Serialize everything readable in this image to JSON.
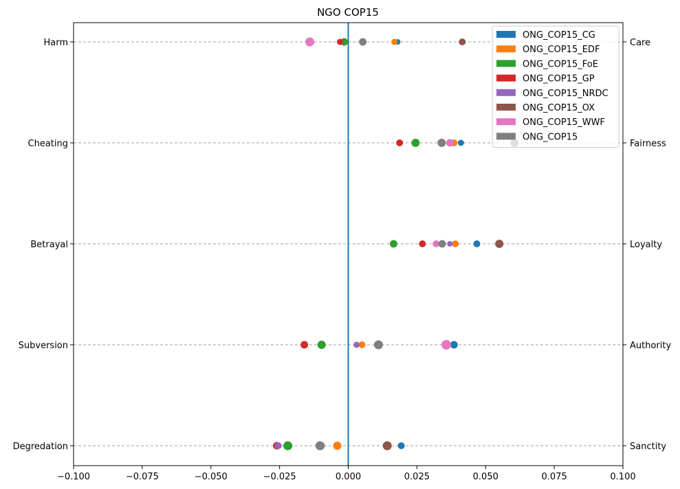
{
  "chart_data": {
    "type": "scatter",
    "title": "NGO COP15",
    "xlabel": "",
    "ylabel": "",
    "xlim": [
      -0.1,
      0.1
    ],
    "xticks": [
      -0.1,
      -0.075,
      -0.05,
      -0.025,
      0.0,
      0.025,
      0.05,
      0.075,
      0.1
    ],
    "xtick_labels": [
      "−0.100",
      "−0.075",
      "−0.050",
      "−0.025",
      "0.000",
      "0.025",
      "0.050",
      "0.075",
      "0.100"
    ],
    "foundations": [
      {
        "left": "Harm",
        "right": "Care"
      },
      {
        "left": "Cheating",
        "right": "Fairness"
      },
      {
        "left": "Betrayal",
        "right": "Loyalty"
      },
      {
        "left": "Subversion",
        "right": "Authority"
      },
      {
        "left": "Degredation",
        "right": "Sanctity"
      }
    ],
    "zero_line_color": "#1f77b4",
    "grid": "horizontal dashed",
    "legend_position": "upper-right",
    "series": [
      {
        "name": "ONG_COP15_CG",
        "color": "#1f77b4",
        "values": [
          0.018,
          0.041,
          0.0468,
          0.0385,
          0.0193
        ],
        "sizes": [
          8,
          9,
          10,
          11,
          10
        ]
      },
      {
        "name": "ONG_COP15_EDF",
        "color": "#ff7f0e",
        "values": [
          0.0168,
          0.0385,
          0.039,
          0.005,
          -0.004
        ],
        "sizes": [
          9,
          10,
          10,
          10,
          12
        ]
      },
      {
        "name": "ONG_COP15_FoE",
        "color": "#2ca02c",
        "values": [
          -0.0015,
          0.0245,
          0.0165,
          -0.0097,
          -0.022
        ],
        "sizes": [
          11,
          12,
          11,
          12,
          13
        ]
      },
      {
        "name": "ONG_COP15_GP",
        "color": "#d62728",
        "values": [
          -0.003,
          0.0187,
          0.027,
          -0.016,
          -0.026
        ],
        "sizes": [
          9,
          10,
          10,
          11,
          11
        ]
      },
      {
        "name": "ONG_COP15_NRDC",
        "color": "#9467bd",
        "values": [
          null,
          null,
          0.037,
          0.003,
          -0.0255
        ],
        "sizes": [
          8,
          8,
          8,
          9,
          10
        ]
      },
      {
        "name": "ONG_COP15_OX",
        "color": "#8c564b",
        "values": [
          0.0415,
          0.0605,
          0.055,
          null,
          0.0142
        ],
        "sizes": [
          10,
          12,
          12,
          10,
          13
        ]
      },
      {
        "name": "ONG_COP15_WWF",
        "color": "#e377c2",
        "values": [
          -0.014,
          0.037,
          0.032,
          0.0357,
          -0.01
        ],
        "sizes": [
          13,
          11,
          10,
          14,
          12
        ]
      },
      {
        "name": "ONG_COP15",
        "color": "#7f7f7f",
        "values": [
          0.0053,
          0.034,
          0.0342,
          0.011,
          -0.0103
        ],
        "sizes": [
          11,
          12,
          11,
          13,
          13
        ]
      }
    ]
  }
}
